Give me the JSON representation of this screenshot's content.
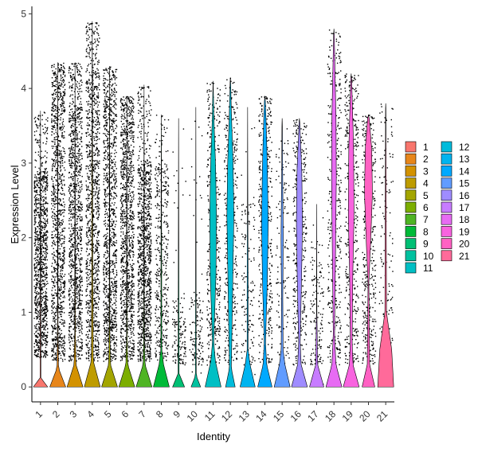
{
  "chart_data": {
    "type": "violin",
    "xlabel": "Identity",
    "ylabel": "Expression Level",
    "ylim": [
      -0.2,
      5.1
    ],
    "yticks": [
      0,
      1,
      2,
      3,
      4,
      5
    ],
    "grid": false,
    "legend_position": "right",
    "categories": [
      "1",
      "2",
      "3",
      "4",
      "5",
      "6",
      "7",
      "8",
      "9",
      "10",
      "11",
      "12",
      "13",
      "14",
      "15",
      "16",
      "17",
      "18",
      "19",
      "20",
      "21"
    ],
    "colors": [
      "#F8766D",
      "#E7861B",
      "#D39200",
      "#BE9C00",
      "#A3A500",
      "#7CAE00",
      "#4FB424",
      "#00BA38",
      "#00BF74",
      "#00C19F",
      "#00BFC4",
      "#00BBDB",
      "#00B4EF",
      "#00A9FF",
      "#619CFF",
      "#9F8CFF",
      "#C77CFF",
      "#E76BF3",
      "#F863DF",
      "#FF61C3",
      "#FF6A9A"
    ],
    "series": [
      {
        "name": "1",
        "max": 3.7,
        "dense_low": 0.4,
        "dense_high": 2.9,
        "point_mode": "dense",
        "shape": [
          [
            0,
            0.9
          ],
          [
            0.12,
            0.05
          ]
        ]
      },
      {
        "name": "2",
        "max": 4.35,
        "dense_low": 0.35,
        "dense_high": 4.0,
        "point_mode": "dense",
        "shape": [
          [
            0,
            1
          ],
          [
            0.25,
            0.1
          ],
          [
            0.6,
            0.04
          ]
        ]
      },
      {
        "name": "3",
        "max": 4.35,
        "dense_low": 0.35,
        "dense_high": 3.8,
        "point_mode": "dense",
        "shape": [
          [
            0,
            1
          ],
          [
            0.3,
            0.12
          ],
          [
            0.7,
            0.04
          ]
        ]
      },
      {
        "name": "4",
        "max": 4.9,
        "dense_low": 0.35,
        "dense_high": 4.2,
        "point_mode": "dense",
        "shape": [
          [
            0,
            1
          ],
          [
            0.35,
            0.12
          ],
          [
            1.5,
            0.06
          ],
          [
            3.5,
            0.03
          ]
        ]
      },
      {
        "name": "5",
        "max": 4.3,
        "dense_low": 0.35,
        "dense_high": 3.9,
        "point_mode": "dense",
        "shape": [
          [
            0,
            1
          ],
          [
            0.3,
            0.12
          ],
          [
            0.8,
            0.04
          ]
        ]
      },
      {
        "name": "6",
        "max": 3.9,
        "dense_low": 0.35,
        "dense_high": 3.6,
        "point_mode": "dense",
        "shape": [
          [
            0,
            1
          ],
          [
            0.3,
            0.12
          ],
          [
            0.6,
            0.04
          ]
        ]
      },
      {
        "name": "7",
        "max": 4.05,
        "dense_low": 0.35,
        "dense_high": 3.0,
        "point_mode": "dense",
        "shape": [
          [
            0,
            1
          ],
          [
            0.3,
            0.12
          ],
          [
            0.6,
            0.04
          ]
        ]
      },
      {
        "name": "8",
        "max": 3.65,
        "dense_low": 0.35,
        "dense_high": 3.0,
        "point_mode": "medium",
        "shape": [
          [
            0,
            1
          ],
          [
            0.3,
            0.28
          ],
          [
            0.5,
            0.06
          ],
          [
            2.5,
            0.03
          ]
        ]
      },
      {
        "name": "9",
        "max": 3.6,
        "dense_low": 0.3,
        "dense_high": 1.2,
        "point_mode": "sparse",
        "shape": [
          [
            0,
            0.75
          ],
          [
            0.18,
            0.06
          ]
        ]
      },
      {
        "name": "10",
        "max": 3.75,
        "dense_low": 0.3,
        "dense_high": 1.2,
        "point_mode": "sparse",
        "shape": [
          [
            0,
            0.6
          ],
          [
            0.15,
            0.05
          ]
        ]
      },
      {
        "name": "11",
        "max": 4.1,
        "dense_low": 0.3,
        "dense_high": 3.8,
        "point_mode": "medium",
        "shape": [
          [
            0,
            1
          ],
          [
            0.35,
            0.28
          ],
          [
            0.6,
            0.08
          ],
          [
            1.5,
            0.36
          ],
          [
            2.3,
            0.42
          ],
          [
            3.0,
            0.3
          ],
          [
            3.6,
            0.1
          ],
          [
            4.0,
            0.03
          ]
        ]
      },
      {
        "name": "12",
        "max": 4.15,
        "dense_low": 0.3,
        "dense_high": 3.8,
        "point_mode": "medium",
        "shape": [
          [
            0,
            0.6
          ],
          [
            0.25,
            0.12
          ],
          [
            1.4,
            0.3
          ],
          [
            2.3,
            0.44
          ],
          [
            3.0,
            0.34
          ],
          [
            3.6,
            0.15
          ],
          [
            4.1,
            0.03
          ]
        ]
      },
      {
        "name": "13",
        "max": 3.75,
        "dense_low": 0.3,
        "dense_high": 2.5,
        "point_mode": "sparse",
        "shape": [
          [
            0,
            0.95
          ],
          [
            0.3,
            0.3
          ],
          [
            0.5,
            0.06
          ],
          [
            1.4,
            0.06
          ],
          [
            2.3,
            0.03
          ]
        ]
      },
      {
        "name": "14",
        "max": 3.9,
        "dense_low": 0.3,
        "dense_high": 3.6,
        "point_mode": "medium",
        "shape": [
          [
            0,
            0.9
          ],
          [
            0.3,
            0.22
          ],
          [
            0.6,
            0.08
          ],
          [
            1.4,
            0.3
          ],
          [
            2.2,
            0.42
          ],
          [
            3.0,
            0.3
          ],
          [
            3.6,
            0.14
          ],
          [
            3.9,
            0.03
          ]
        ]
      },
      {
        "name": "15",
        "max": 3.6,
        "dense_low": 0.3,
        "dense_high": 3.2,
        "point_mode": "sparse",
        "shape": [
          [
            0,
            1
          ],
          [
            0.3,
            0.35
          ],
          [
            0.5,
            0.12
          ],
          [
            1.2,
            0.08
          ],
          [
            2.0,
            0.14
          ],
          [
            3.0,
            0.05
          ],
          [
            3.5,
            0.03
          ]
        ]
      },
      {
        "name": "16",
        "max": 3.6,
        "dense_low": 0.3,
        "dense_high": 3.3,
        "point_mode": "medium",
        "shape": [
          [
            0,
            1
          ],
          [
            0.3,
            0.22
          ],
          [
            0.6,
            0.1
          ],
          [
            1.5,
            0.28
          ],
          [
            2.2,
            0.38
          ],
          [
            2.9,
            0.3
          ],
          [
            3.4,
            0.1
          ],
          [
            3.6,
            0.03
          ]
        ]
      },
      {
        "name": "17",
        "max": 2.45,
        "dense_low": 0.3,
        "dense_high": 2.0,
        "point_mode": "sparse",
        "shape": [
          [
            0,
            0.9
          ],
          [
            0.3,
            0.12
          ],
          [
            1.0,
            0.03
          ]
        ]
      },
      {
        "name": "18",
        "max": 4.8,
        "dense_low": 0.3,
        "dense_high": 4.4,
        "point_mode": "medium",
        "shape": [
          [
            0,
            1
          ],
          [
            0.3,
            0.25
          ],
          [
            0.7,
            0.08
          ],
          [
            1.8,
            0.2
          ],
          [
            2.8,
            0.3
          ],
          [
            3.6,
            0.26
          ],
          [
            4.3,
            0.12
          ],
          [
            4.8,
            0.03
          ]
        ]
      },
      {
        "name": "19",
        "max": 4.2,
        "dense_low": 0.3,
        "dense_high": 4.0,
        "point_mode": "medium",
        "shape": [
          [
            0,
            1
          ],
          [
            0.3,
            0.22
          ],
          [
            0.6,
            0.12
          ],
          [
            1.5,
            0.2
          ],
          [
            2.3,
            0.36
          ],
          [
            3.2,
            0.3
          ],
          [
            3.9,
            0.12
          ],
          [
            4.2,
            0.03
          ]
        ]
      },
      {
        "name": "20",
        "max": 3.65,
        "dense_low": 0.3,
        "dense_high": 3.5,
        "point_mode": "medium",
        "shape": [
          [
            0,
            0.8
          ],
          [
            0.3,
            0.15
          ],
          [
            1.4,
            0.05
          ],
          [
            1.9,
            0.26
          ],
          [
            2.6,
            0.5
          ],
          [
            3.2,
            0.4
          ],
          [
            3.6,
            0.1
          ]
        ]
      },
      {
        "name": "21",
        "max": 3.8,
        "dense_low": 0.3,
        "dense_high": 3.8,
        "point_mode": "sparse",
        "shape": [
          [
            0,
            1
          ],
          [
            0.5,
            0.75
          ],
          [
            1.0,
            0.1
          ],
          [
            3.8,
            0.02
          ]
        ]
      }
    ]
  }
}
